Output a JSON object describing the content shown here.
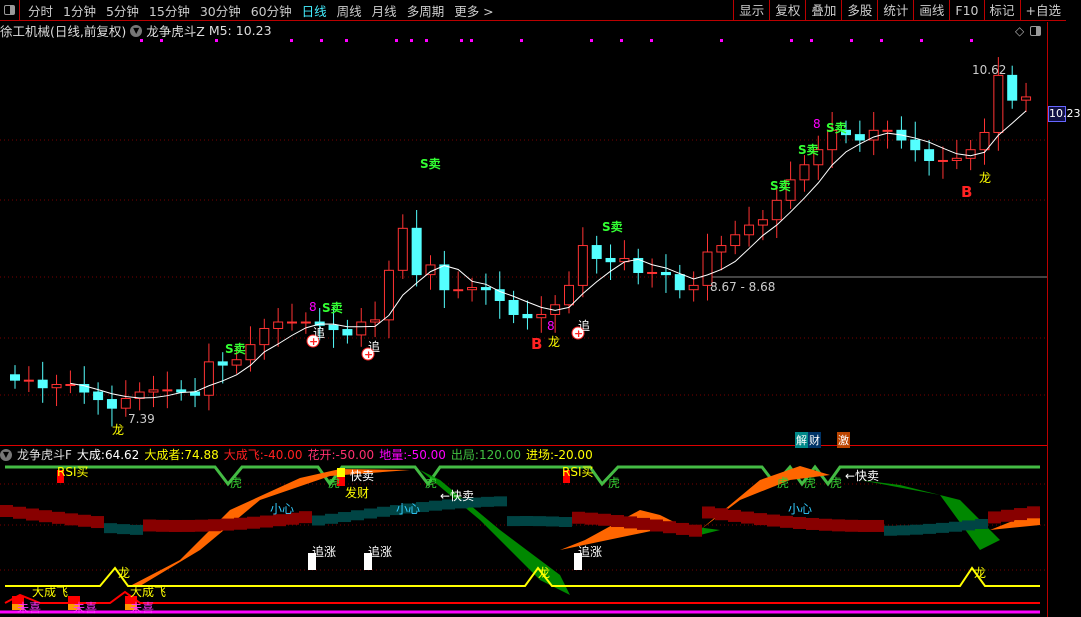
{
  "toolbar": {
    "tabs": [
      "分时",
      "1分钟",
      "5分钟",
      "15分钟",
      "30分钟",
      "60分钟",
      "日线",
      "周线",
      "月线",
      "多周期",
      "更多 >"
    ],
    "active_tab": "日线",
    "buttons": [
      "显示",
      "复权",
      "叠加",
      "多股",
      "统计",
      "画线",
      "F10",
      "标记",
      "+自选"
    ]
  },
  "title": {
    "stock": "徐工机械(日线,前复权)",
    "indicator": "龙争虎斗Z",
    "ma_label": "M5: 10.23"
  },
  "main": {
    "price_tag": "10.23",
    "high_label": "10.62",
    "low_label": "7.39",
    "range_label": "8.67 - 8.68",
    "signals": {
      "sell": "S卖",
      "eight": "8",
      "chase": "追",
      "dragon": "龙",
      "buy": "B"
    },
    "tags": {
      "jie": "解",
      "cai": "财",
      "ji": "激"
    },
    "colors": {
      "up": "#ff3333",
      "down": "#54ffff",
      "ma": "#ffffff"
    },
    "closes": [
      7.74,
      7.74,
      7.67,
      7.7,
      7.7,
      7.63,
      7.56,
      7.48,
      7.57,
      7.63,
      7.65,
      7.65,
      7.63,
      7.6,
      7.91,
      7.88,
      7.93,
      8.07,
      8.22,
      8.28,
      8.28,
      8.28,
      8.25,
      8.21,
      8.16,
      8.28,
      8.3,
      8.76,
      9.15,
      8.72,
      8.81,
      8.58,
      8.58,
      8.6,
      8.58,
      8.48,
      8.35,
      8.32,
      8.35,
      8.44,
      8.62,
      8.99,
      8.87,
      8.84,
      8.87,
      8.74,
      8.74,
      8.72,
      8.58,
      8.62,
      8.93,
      8.99,
      9.09,
      9.18,
      9.23,
      9.41,
      9.6,
      9.74,
      9.88,
      10.06,
      10.02,
      9.97,
      10.06,
      10.06,
      9.97,
      9.88,
      9.78,
      9.78,
      9.8,
      9.88,
      10.04,
      10.57,
      10.34,
      10.37
    ]
  },
  "lower": {
    "name": "龙争虎斗F",
    "values": [
      {
        "label": "大成:",
        "value": "64.62",
        "color": "#ffffff"
      },
      {
        "label": "大成者:",
        "value": "74.88",
        "color": "#ffff00"
      },
      {
        "label": "大成飞:",
        "value": "-40.00",
        "color": "#ff2020"
      },
      {
        "label": "花开:",
        "value": "-50.00",
        "color": "#ff3070"
      },
      {
        "label": "地量:",
        "value": "-50.00",
        "color": "#ff00ff"
      },
      {
        "label": "出局:",
        "value": "120.00",
        "color": "#40c040"
      },
      {
        "label": "进场:",
        "value": "-20.00",
        "color": "#ffff00"
      }
    ],
    "labels": {
      "rsi_buy": "RSI买",
      "tiger": "虎",
      "fast_sell": "快卖",
      "fast_sell_arrow": "←快卖",
      "fortune": "发财",
      "careful": "小心",
      "chase_up": "追涨",
      "dragon": "龙",
      "dacheng_fei": "大成飞",
      "buy_word": "未喜"
    }
  }
}
